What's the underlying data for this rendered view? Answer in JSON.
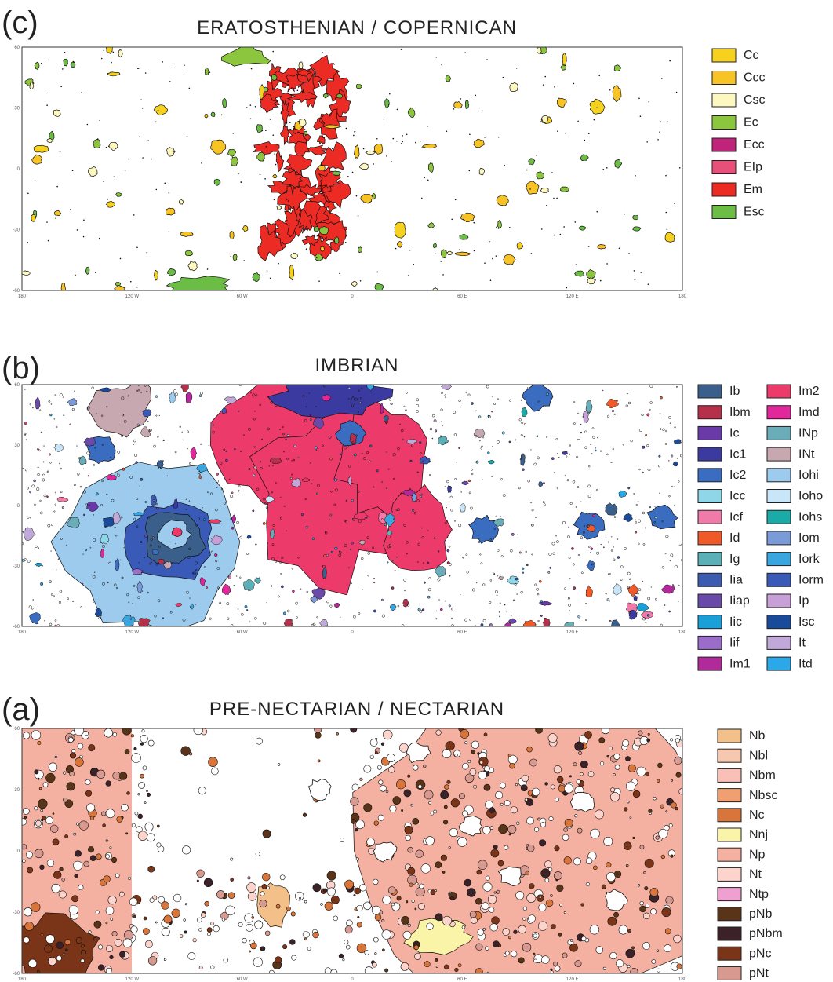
{
  "panels": [
    {
      "label": "(c)",
      "title": "ERATOSTHENIAN / COPERNICAN",
      "x_ticks": [
        "180",
        "120 W",
        "60 W",
        "0",
        "60 E",
        "120 E",
        "180"
      ],
      "y_ticks": [
        "60",
        "30",
        "0",
        "-30",
        "-60"
      ],
      "legend": [
        {
          "name": "Cc",
          "color": "#f6d21f"
        },
        {
          "name": "Ccc",
          "color": "#f7c325"
        },
        {
          "name": "Csc",
          "color": "#fdf7c0"
        },
        {
          "name": "Ec",
          "color": "#8cc63f"
        },
        {
          "name": "Ecc",
          "color": "#c0247a"
        },
        {
          "name": "EIp",
          "color": "#e8507a"
        },
        {
          "name": "Em",
          "color": "#ec2b24"
        },
        {
          "name": "Esc",
          "color": "#6cbd45"
        }
      ]
    },
    {
      "label": "(b)",
      "title": "IMBRIAN",
      "x_ticks": [
        "180",
        "120 W",
        "60 W",
        "0",
        "60 E",
        "120 E",
        "180"
      ],
      "y_ticks": [
        "60",
        "30",
        "0",
        "-30",
        "-60"
      ],
      "legend": [
        {
          "name": "Ib",
          "color": "#3a5f8a"
        },
        {
          "name": "Ibm",
          "color": "#b5304a"
        },
        {
          "name": "Ic",
          "color": "#6a3aa8"
        },
        {
          "name": "Ic1",
          "color": "#3b3aa0"
        },
        {
          "name": "Ic2",
          "color": "#3a6cc0"
        },
        {
          "name": "Icc",
          "color": "#8fd6e8"
        },
        {
          "name": "Icf",
          "color": "#f07aa8"
        },
        {
          "name": "Id",
          "color": "#f05a28"
        },
        {
          "name": "Ig",
          "color": "#5bb0b8"
        },
        {
          "name": "Iia",
          "color": "#3b5cb0"
        },
        {
          "name": "Iiap",
          "color": "#6a4aa8"
        },
        {
          "name": "Iic",
          "color": "#1aa0d8"
        },
        {
          "name": "Iif",
          "color": "#9a6ec8"
        },
        {
          "name": "Im1",
          "color": "#b02a9a"
        },
        {
          "name": "Im2",
          "color": "#ec3a6a"
        },
        {
          "name": "Imd",
          "color": "#e0289a"
        },
        {
          "name": "INp",
          "color": "#6aacb8"
        },
        {
          "name": "INt",
          "color": "#c8a8b0"
        },
        {
          "name": "Iohi",
          "color": "#9ccbee"
        },
        {
          "name": "Ioho",
          "color": "#c8e6f8"
        },
        {
          "name": "Iohs",
          "color": "#1aaaa8"
        },
        {
          "name": "Iom",
          "color": "#7a9ad8"
        },
        {
          "name": "Iork",
          "color": "#3aa6e0"
        },
        {
          "name": "Iorm",
          "color": "#3a5ab8"
        },
        {
          "name": "Ip",
          "color": "#c8a0d8"
        },
        {
          "name": "Isc",
          "color": "#1a4a9a"
        },
        {
          "name": "It",
          "color": "#c0a8d8"
        },
        {
          "name": "Itd",
          "color": "#2aa8e8"
        }
      ]
    },
    {
      "label": "(a)",
      "title": "PRE-NECTARIAN / NECTARIAN",
      "x_ticks": [
        "180",
        "120 W",
        "60 W",
        "0",
        "60 E",
        "120 E",
        "180"
      ],
      "y_ticks": [
        "60",
        "30",
        "0",
        "-30",
        "-60"
      ],
      "legend": [
        {
          "name": "Nb",
          "color": "#f4c08a"
        },
        {
          "name": "Nbl",
          "color": "#f7c8b0"
        },
        {
          "name": "Nbm",
          "color": "#f9c0b8"
        },
        {
          "name": "Nbsc",
          "color": "#f0a070"
        },
        {
          "name": "Nc",
          "color": "#d8753a"
        },
        {
          "name": "Nnj",
          "color": "#faf4a8"
        },
        {
          "name": "Np",
          "color": "#f4b0a0"
        },
        {
          "name": "Nt",
          "color": "#fcd4cc"
        },
        {
          "name": "Ntp",
          "color": "#f0a0d0"
        },
        {
          "name": "pNb",
          "color": "#5a3418"
        },
        {
          "name": "pNbm",
          "color": "#3a2228"
        },
        {
          "name": "pNc",
          "color": "#7a3418"
        },
        {
          "name": "pNt",
          "color": "#d89a90"
        }
      ]
    }
  ]
}
